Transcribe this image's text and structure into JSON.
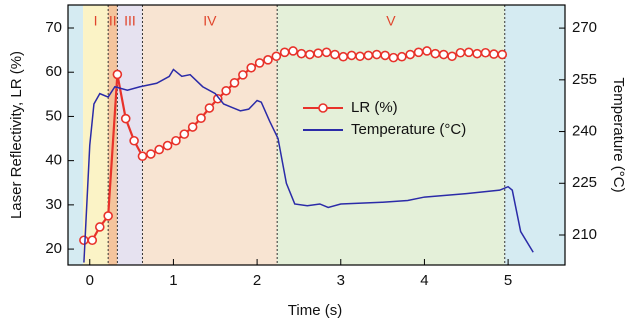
{
  "chart_data": {
    "type": "line",
    "xlabel": "Time (s)",
    "ylabel": "Laser Reflectivity, LR (%)",
    "y2label": "Temperature (°C)",
    "xlim": [
      -0.26,
      5.68
    ],
    "xticks": [
      0,
      1,
      2,
      3,
      4,
      5
    ],
    "ylim": [
      16.4,
      75.2
    ],
    "yticks": [
      20,
      30,
      40,
      50,
      60,
      70
    ],
    "y2lim": [
      201.3,
      276.7
    ],
    "y2ticks": [
      210,
      225,
      240,
      255,
      270
    ],
    "regions": [
      {
        "start": -0.26,
        "end": -0.08,
        "color": "#d5ebf2"
      },
      {
        "label": "I",
        "start": -0.08,
        "end": 0.22,
        "color": "#fbf3c6"
      },
      {
        "label": "II",
        "start": 0.22,
        "end": 0.33,
        "color": "#f4c49c"
      },
      {
        "label": "III",
        "start": 0.33,
        "end": 0.63,
        "color": "#e6e2f0"
      },
      {
        "label": "IV",
        "start": 0.63,
        "end": 2.24,
        "color": "#f8e4d2"
      },
      {
        "label": "V",
        "start": 2.24,
        "end": 4.96,
        "color": "#e4f0d9"
      },
      {
        "start": 4.96,
        "end": 5.68,
        "color": "#d5ebf2"
      }
    ],
    "series": [
      {
        "name": "LR (%)",
        "color": "#e8322a",
        "marker": "circle",
        "x": [
          -0.07,
          0.03,
          0.12,
          0.22,
          0.33,
          0.43,
          0.53,
          0.63,
          0.73,
          0.83,
          0.93,
          1.03,
          1.13,
          1.23,
          1.33,
          1.43,
          1.53,
          1.63,
          1.73,
          1.83,
          1.93,
          2.03,
          2.13,
          2.23,
          2.33,
          2.43,
          2.53,
          2.63,
          2.73,
          2.83,
          2.93,
          3.03,
          3.13,
          3.23,
          3.33,
          3.43,
          3.53,
          3.63,
          3.73,
          3.83,
          3.93,
          4.03,
          4.13,
          4.23,
          4.33,
          4.43,
          4.53,
          4.63,
          4.73,
          4.83,
          4.93
        ],
        "values": [
          22,
          22,
          25,
          27.5,
          59.5,
          49.5,
          44.5,
          41,
          41.5,
          42.5,
          43.4,
          44.5,
          46,
          47.6,
          49.6,
          51.9,
          54,
          55.8,
          57.6,
          59.4,
          61,
          62.1,
          62.8,
          63.6,
          64.5,
          64.8,
          64.2,
          64,
          64.3,
          64.5,
          64,
          63.5,
          63.8,
          63.6,
          63.8,
          64,
          63.8,
          63.3,
          63.5,
          64,
          64.5,
          64.8,
          64.2,
          64,
          63.6,
          64.4,
          64.5,
          64.2,
          64.4,
          64.1,
          64
        ]
      },
      {
        "name": "Temperature (°C)",
        "color": "#2b2ba8",
        "axis": "y2",
        "x": [
          -0.07,
          0.0,
          0.05,
          0.12,
          0.22,
          0.3,
          0.45,
          0.6,
          0.8,
          0.95,
          1.0,
          1.1,
          1.2,
          1.35,
          1.5,
          1.6,
          1.7,
          1.8,
          1.9,
          2.0,
          2.05,
          2.15,
          2.25,
          2.35,
          2.45,
          2.6,
          2.75,
          2.85,
          3.0,
          3.5,
          3.8,
          4.0,
          4.5,
          4.9,
          5.0,
          5.05,
          5.15,
          5.3
        ],
        "values": [
          202,
          236,
          248,
          251,
          250,
          253,
          252,
          253,
          254,
          256,
          258,
          256,
          256.5,
          253,
          251,
          248,
          247,
          246,
          246.5,
          249,
          248.5,
          243,
          238,
          225,
          219,
          218.5,
          219,
          218,
          219,
          219.5,
          220,
          221,
          222,
          223,
          224,
          223,
          211,
          205
        ]
      }
    ]
  }
}
